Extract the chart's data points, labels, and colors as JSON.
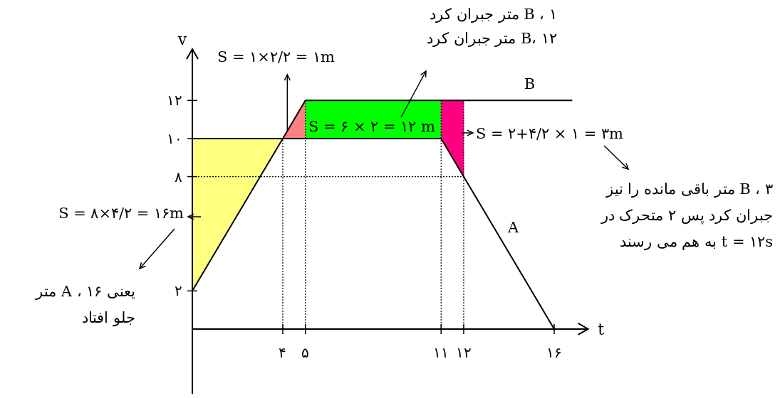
{
  "chart_data": {
    "type": "line",
    "xlabel": "t",
    "ylabel": "v",
    "xlim": [
      0,
      17.5
    ],
    "ylim": [
      -3.4,
      14.7
    ],
    "xticks": [
      {
        "value": 4,
        "label": "۴"
      },
      {
        "value": 5,
        "label": "۵"
      },
      {
        "value": 11,
        "label": "۱۱"
      },
      {
        "value": 12,
        "label": "۱۲"
      },
      {
        "value": 16,
        "label": "۱۶"
      }
    ],
    "yticks": [
      {
        "value": 2,
        "label": "۲"
      },
      {
        "value": 8,
        "label": "۸"
      },
      {
        "value": 10,
        "label": "۱۰"
      },
      {
        "value": 12,
        "label": "۱۲"
      }
    ],
    "series": [
      {
        "name": "A",
        "color": "#000000",
        "x": [
          0,
          11,
          16
        ],
        "values": [
          10,
          10,
          0
        ]
      },
      {
        "name": "B",
        "color": "#000000",
        "x": [
          0,
          4,
          5,
          16.8
        ],
        "values": [
          2,
          10,
          12,
          12
        ]
      },
      {
        "type": "area",
        "color": "#ffff80",
        "x": [
          0,
          4
        ],
        "lower": [
          2,
          10
        ],
        "upper": [
          10,
          10
        ],
        "values": [
          null,
          null
        ]
      },
      {
        "type": "area",
        "color": "#ff8080",
        "x": [
          4,
          5
        ],
        "lower": [
          10,
          10
        ],
        "upper": [
          10,
          12
        ],
        "values": [
          null,
          null
        ]
      },
      {
        "type": "area",
        "color": "#00ff00",
        "x": [
          5,
          11
        ],
        "lower": [
          10,
          10
        ],
        "upper": [
          12,
          12
        ],
        "values": [
          null,
          null
        ]
      },
      {
        "type": "area",
        "color": "#ff0080",
        "x": [
          11,
          12
        ],
        "lower": [
          10,
          8
        ],
        "upper": [
          12,
          12
        ],
        "values": [
          null,
          null
        ]
      }
    ],
    "ref_lines": [
      {
        "axis": "x",
        "value": 4,
        "line_style": "dotted"
      },
      {
        "axis": "x",
        "value": 5,
        "line_style": "dotted"
      },
      {
        "axis": "x",
        "value": 11,
        "line_style": "dotted"
      },
      {
        "axis": "x",
        "value": 12,
        "line_style": "dotted"
      },
      {
        "axis": "y",
        "value": 8,
        "line_style": "dotted"
      }
    ],
    "grid": false,
    "legend": false,
    "marker": "none",
    "line_style": "solid",
    "annotations": [
      "B ، ۱ متر جبران کرد",
      "B، ۱۲ متر جبران کرد",
      {
        "text": "S = ۱×۲/۲ = ۱m",
        "x": 4.2,
        "y": 10.4
      },
      "S = ۶ × ۲ = ۱۲ m",
      "S = ۲+۴/۲ × ۱ = ۳m",
      "B ، ۳ متر باقی مانده را نیز جبران کرد پس ۲ متحرک در t = ۱۲s به هم می رسند",
      "S = ۸×۴/۲ = ۱۶m",
      "یعنی A ، ۱۶ متر جلو افتاد"
    ]
  }
}
